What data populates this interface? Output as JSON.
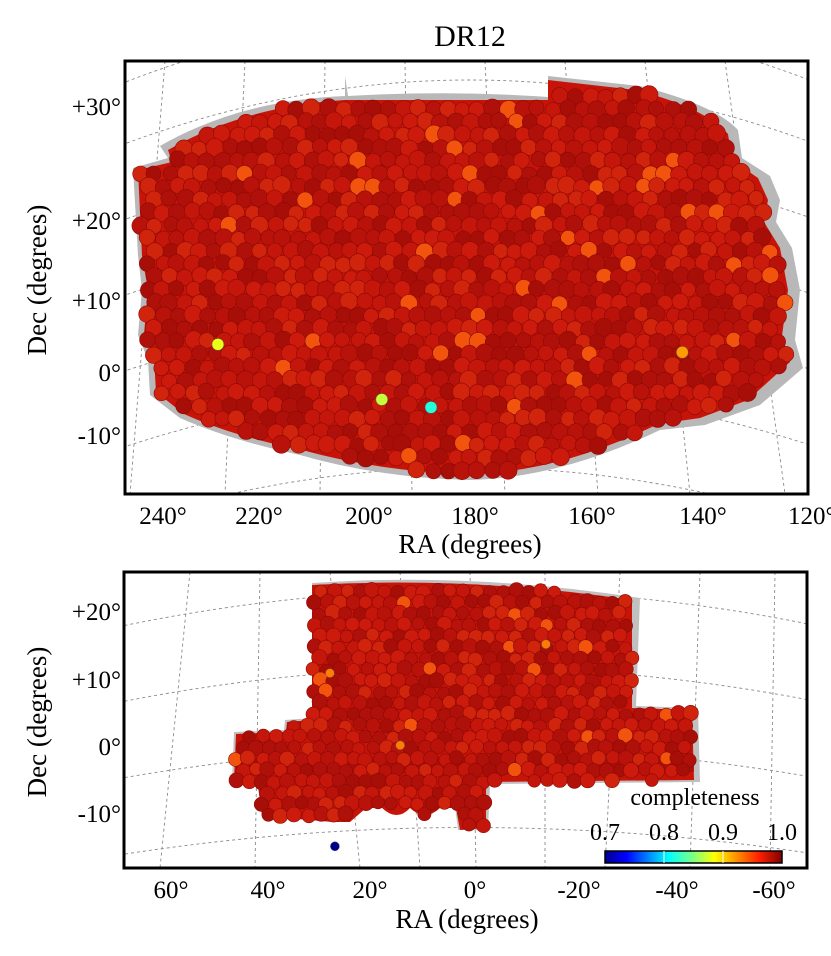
{
  "figure": {
    "title": "DR12"
  },
  "chart_data": [
    {
      "type": "heatmap",
      "subtype": "sky-footprint",
      "panel": "north",
      "title": "DR12",
      "xlabel": "RA (degrees)",
      "ylabel": "Dec (degrees)",
      "xlim": [
        245,
        120
      ],
      "ylim": [
        -19,
        36
      ],
      "xticks": [
        240,
        220,
        200,
        180,
        160,
        140,
        120
      ],
      "xtick_labels": [
        "240°",
        "220°",
        "200°",
        "180°",
        "160°",
        "140°",
        "120°"
      ],
      "yticks": [
        30,
        20,
        10,
        0,
        -10
      ],
      "ytick_labels": [
        "+30°",
        "+20°",
        "+10°",
        "0°",
        "-10°"
      ],
      "dominant_completeness": 1.0,
      "low_completeness_sectors": [
        {
          "ra": 228,
          "dec": 0,
          "completeness": 0.88
        },
        {
          "ra": 198,
          "dec": -7,
          "completeness": 0.87
        },
        {
          "ra": 189,
          "dec": -8,
          "completeness": 0.82
        },
        {
          "ra": 143,
          "dec": -1,
          "completeness": 0.92
        }
      ]
    },
    {
      "type": "heatmap",
      "subtype": "sky-footprint",
      "panel": "south",
      "xlabel": "RA (degrees)",
      "ylabel": "Dec (degrees)",
      "xlim": [
        69,
        -67
      ],
      "ylim": [
        -15,
        26
      ],
      "xticks": [
        60,
        40,
        20,
        0,
        -20,
        -40,
        -60
      ],
      "xtick_labels": [
        "60°",
        "40°",
        "20°",
        "0°",
        "-20°",
        "-40°",
        "-60°"
      ],
      "yticks": [
        20,
        10,
        0,
        -10
      ],
      "ytick_labels": [
        "+20°",
        "+10°",
        "0°",
        "-10°"
      ],
      "dominant_completeness": 1.0,
      "low_completeness_sectors": [
        {
          "ra": 27,
          "dec": -12,
          "completeness": 0.7
        },
        {
          "ra": 28,
          "dec": 12,
          "completeness": 0.93
        },
        {
          "ra": -15,
          "dec": 16,
          "completeness": 0.93
        },
        {
          "ra": 14,
          "dec": 2,
          "completeness": 0.93
        }
      ],
      "colorbar": {
        "label": "completeness",
        "ticks": [
          0.7,
          0.8,
          0.9,
          1.0
        ],
        "tick_labels": [
          "0.7",
          "0.8",
          "0.9",
          "1.0"
        ],
        "range": [
          0.7,
          1.0
        ],
        "colormap": "jet"
      }
    }
  ]
}
